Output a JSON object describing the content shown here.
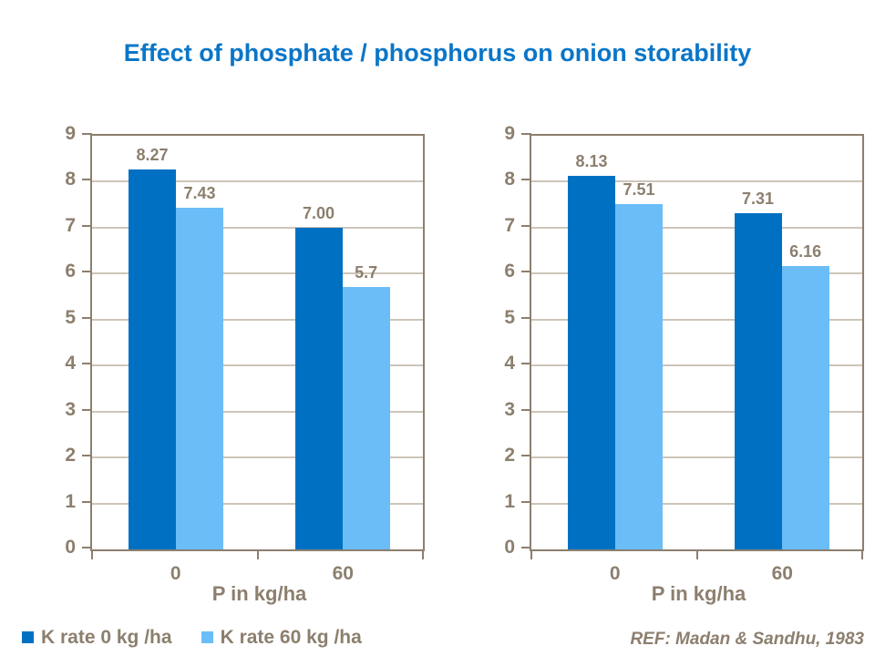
{
  "title": "Effect of phosphate / phosphorus on onion storability",
  "colors": {
    "title": "#0a76c8",
    "series1": "#0071c2",
    "series2": "#6bbdf8",
    "axis": "#8c7f6e",
    "grid": "#cdc5b9"
  },
  "legend": {
    "items": [
      {
        "label": "K rate 0 kg /ha",
        "color": "#0071c2"
      },
      {
        "label": "K rate 60 kg /ha",
        "color": "#6bbdf8"
      }
    ]
  },
  "reference": "REF: Madan & Sandhu, 1983",
  "chart_data": [
    {
      "type": "bar",
      "categories": [
        "0",
        "60"
      ],
      "series": [
        {
          "name": "K rate 0 kg /ha",
          "values": [
            8.27,
            7.0
          ],
          "labels": [
            "8.27",
            "7.00"
          ]
        },
        {
          "name": "K rate 60 kg /ha",
          "values": [
            7.43,
            5.7
          ],
          "labels": [
            "7.43",
            "5.7"
          ]
        }
      ],
      "xlabel": "P in kg/ha",
      "ylabel": "",
      "ylim": [
        0,
        9
      ],
      "ytick_step": 1,
      "grid": true,
      "legend_position": "bottom-left"
    },
    {
      "type": "bar",
      "categories": [
        "0",
        "60"
      ],
      "series": [
        {
          "name": "K rate 0 kg /ha",
          "values": [
            8.13,
            7.31
          ],
          "labels": [
            "8.13",
            "7.31"
          ]
        },
        {
          "name": "K rate 60 kg /ha",
          "values": [
            7.51,
            6.16
          ],
          "labels": [
            "7.51",
            "6.16"
          ]
        }
      ],
      "xlabel": "P in kg/ha",
      "ylabel": "",
      "ylim": [
        0,
        9
      ],
      "ytick_step": 1,
      "grid": true,
      "legend_position": "bottom-left"
    }
  ]
}
